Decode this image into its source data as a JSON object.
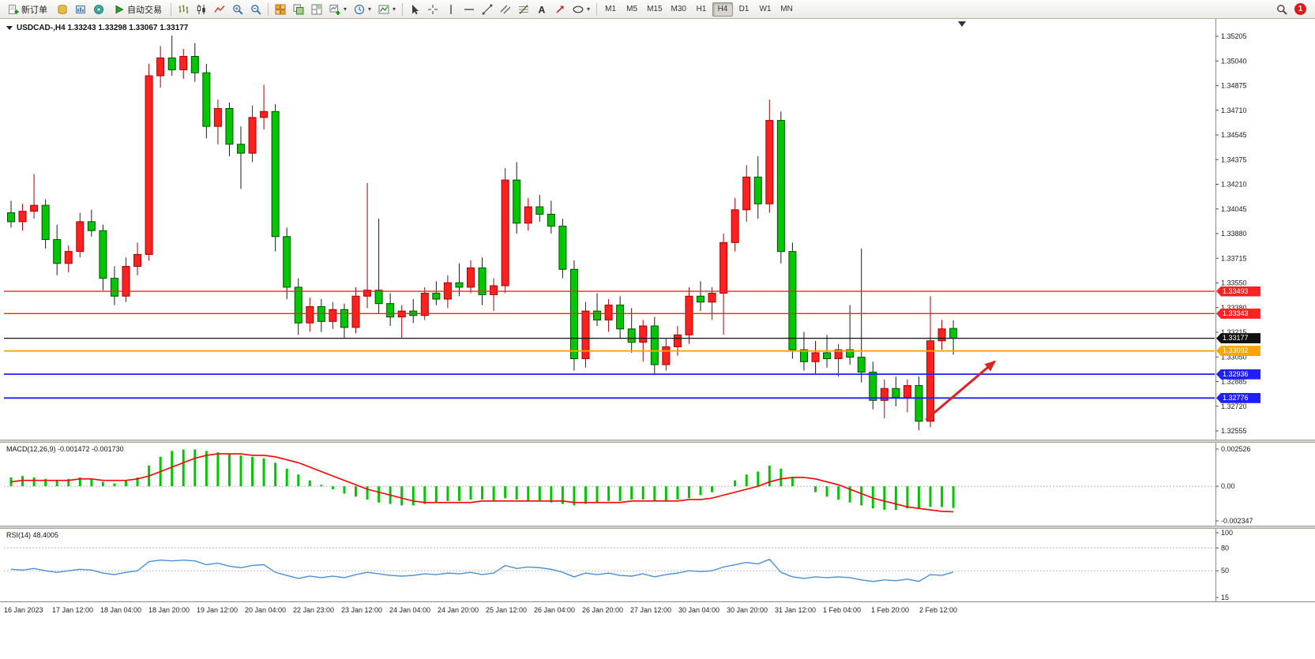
{
  "chart": {
    "title": "USDCAD-,H4  1.33243 1.33298 1.33067 1.33177",
    "symbol": "USDCAD-",
    "timeframe": "H4"
  },
  "toolbar": {
    "new_order_label": "新订单",
    "auto_trading_label": "自动交易",
    "timeframes": [
      "M1",
      "M5",
      "M15",
      "M30",
      "H1",
      "H4",
      "D1",
      "W1",
      "MN"
    ],
    "active_timeframe": "H4",
    "notification_count": "1",
    "groups": [
      {
        "name": "market-group",
        "items": [
          {
            "icon": "market-watch"
          },
          {
            "icon": "data-window"
          },
          {
            "icon": "navigator"
          }
        ]
      },
      {
        "name": "chart-type-group",
        "items": [
          {
            "icon": "bar-chart"
          },
          {
            "icon": "candlestick-chart"
          },
          {
            "icon": "line-chart"
          },
          {
            "icon": "zoom-in"
          },
          {
            "icon": "zoom-out"
          }
        ]
      },
      {
        "name": "window-group",
        "items": [
          {
            "icon": "tile-windows"
          },
          {
            "icon": "cascade-windows"
          },
          {
            "icon": "arrange-windows"
          },
          {
            "icon": "new-chart",
            "caret": true
          },
          {
            "icon": "timeframes-clock",
            "caret": true
          },
          {
            "icon": "indicators",
            "caret": true
          }
        ]
      },
      {
        "name": "drawing-group",
        "items": [
          {
            "icon": "cursor"
          },
          {
            "icon": "crosshair"
          },
          {
            "icon": "vertical-line"
          },
          {
            "icon": "horizontal-line"
          },
          {
            "icon": "trendline"
          },
          {
            "icon": "equidistant-channel"
          },
          {
            "icon": "fibonacci"
          },
          {
            "icon": "text-label"
          },
          {
            "icon": "arrow-marker"
          },
          {
            "icon": "shapes",
            "caret": true
          }
        ]
      }
    ]
  },
  "chart_data": [
    {
      "type": "candlestick",
      "title": "USDCAD-,H4",
      "last_ohlc": {
        "open": 1.33243,
        "high": 1.33298,
        "low": 1.33067,
        "close": 1.33177
      },
      "y_range": [
        1.32555,
        1.35205
      ],
      "y_axis_labels": [
        "1.35205",
        "1.35040",
        "1.34875",
        "1.34710",
        "1.34545",
        "1.34375",
        "1.34210",
        "1.34045",
        "1.33880",
        "1.33715",
        "1.33550",
        "1.33380",
        "1.33215",
        "1.33050",
        "1.32885",
        "1.32720",
        "1.32555"
      ],
      "x_labels": [
        "16 Jan 2023",
        "17 Jan 12:00",
        "18 Jan 04:00",
        "18 Jan 20:00",
        "19 Jan 12:00",
        "20 Jan 04:00",
        "22 Jan 23:00",
        "23 Jan 12:00",
        "24 Jan 04:00",
        "24 Jan 20:00",
        "25 Jan 12:00",
        "26 Jan 04:00",
        "26 Jan 20:00",
        "27 Jan 12:00",
        "30 Jan 04:00",
        "30 Jan 20:00",
        "31 Jan 12:00",
        "1 Feb 04:00",
        "1 Feb 20:00",
        "2 Feb 12:00"
      ],
      "bull_color": "#ff2020",
      "bear_color": "#00c800",
      "candles_ohlc": [
        [
          1.3402,
          1.341,
          1.3392,
          1.3396
        ],
        [
          1.3396,
          1.3408,
          1.339,
          1.3403
        ],
        [
          1.3403,
          1.3428,
          1.3398,
          1.3407
        ],
        [
          1.3407,
          1.3411,
          1.3378,
          1.3384
        ],
        [
          1.3384,
          1.3394,
          1.336,
          1.3368
        ],
        [
          1.3368,
          1.338,
          1.3362,
          1.3376
        ],
        [
          1.3376,
          1.3402,
          1.3372,
          1.3396
        ],
        [
          1.3396,
          1.3404,
          1.3386,
          1.339
        ],
        [
          1.339,
          1.3394,
          1.335,
          1.3358
        ],
        [
          1.3358,
          1.3366,
          1.334,
          1.3346
        ],
        [
          1.3346,
          1.3372,
          1.3342,
          1.3366
        ],
        [
          1.3366,
          1.3382,
          1.336,
          1.3374
        ],
        [
          1.3374,
          1.3502,
          1.337,
          1.3494
        ],
        [
          1.3494,
          1.3514,
          1.3486,
          1.3506
        ],
        [
          1.3506,
          1.3521,
          1.3494,
          1.3498
        ],
        [
          1.3498,
          1.3512,
          1.3492,
          1.3507
        ],
        [
          1.3507,
          1.3516,
          1.349,
          1.3496
        ],
        [
          1.3496,
          1.3502,
          1.3452,
          1.346
        ],
        [
          1.346,
          1.3478,
          1.3448,
          1.3472
        ],
        [
          1.3472,
          1.3476,
          1.344,
          1.3448
        ],
        [
          1.3448,
          1.346,
          1.3418,
          1.3442
        ],
        [
          1.3442,
          1.3474,
          1.3436,
          1.3466
        ],
        [
          1.3466,
          1.3488,
          1.3458,
          1.347
        ],
        [
          1.347,
          1.3475,
          1.3376,
          1.3386
        ],
        [
          1.3386,
          1.3392,
          1.3344,
          1.3352
        ],
        [
          1.3352,
          1.3358,
          1.332,
          1.3328
        ],
        [
          1.3328,
          1.3345,
          1.3322,
          1.3339
        ],
        [
          1.3339,
          1.3344,
          1.3322,
          1.3329
        ],
        [
          1.3329,
          1.3342,
          1.3324,
          1.3337
        ],
        [
          1.3337,
          1.3341,
          1.3318,
          1.3325
        ],
        [
          1.3325,
          1.3352,
          1.3321,
          1.3346
        ],
        [
          1.3346,
          1.3422,
          1.3338,
          1.335
        ],
        [
          1.335,
          1.3398,
          1.3334,
          1.3341
        ],
        [
          1.3341,
          1.3348,
          1.3326,
          1.3332
        ],
        [
          1.3332,
          1.334,
          1.3318,
          1.3336
        ],
        [
          1.3336,
          1.3344,
          1.3328,
          1.3333
        ],
        [
          1.3333,
          1.3352,
          1.333,
          1.3348
        ],
        [
          1.3348,
          1.3356,
          1.334,
          1.3344
        ],
        [
          1.3344,
          1.336,
          1.3338,
          1.3355
        ],
        [
          1.3355,
          1.3368,
          1.3346,
          1.3352
        ],
        [
          1.3352,
          1.337,
          1.3348,
          1.3365
        ],
        [
          1.3365,
          1.3372,
          1.334,
          1.3347
        ],
        [
          1.3347,
          1.3358,
          1.3336,
          1.3353
        ],
        [
          1.3353,
          1.3432,
          1.3348,
          1.3424
        ],
        [
          1.3424,
          1.3436,
          1.3388,
          1.3395
        ],
        [
          1.3395,
          1.3412,
          1.339,
          1.3406
        ],
        [
          1.3406,
          1.3414,
          1.3396,
          1.3401
        ],
        [
          1.3401,
          1.341,
          1.3388,
          1.3393
        ],
        [
          1.3393,
          1.3398,
          1.3358,
          1.3364
        ],
        [
          1.3364,
          1.337,
          1.3296,
          1.3304
        ],
        [
          1.3304,
          1.3342,
          1.3298,
          1.3336
        ],
        [
          1.3336,
          1.3348,
          1.3326,
          1.333
        ],
        [
          1.333,
          1.3344,
          1.3322,
          1.334
        ],
        [
          1.334,
          1.3346,
          1.3318,
          1.3324
        ],
        [
          1.3324,
          1.3338,
          1.3308,
          1.3315
        ],
        [
          1.3315,
          1.333,
          1.3302,
          1.3326
        ],
        [
          1.3326,
          1.3332,
          1.3294,
          1.33
        ],
        [
          1.33,
          1.3318,
          1.3296,
          1.3312
        ],
        [
          1.3312,
          1.3326,
          1.3306,
          1.332
        ],
        [
          1.332,
          1.3352,
          1.3314,
          1.3346
        ],
        [
          1.3346,
          1.3356,
          1.3336,
          1.3342
        ],
        [
          1.3342,
          1.3352,
          1.333,
          1.3348
        ],
        [
          1.3348,
          1.3388,
          1.332,
          1.3382
        ],
        [
          1.3382,
          1.3412,
          1.3376,
          1.3404
        ],
        [
          1.3404,
          1.3434,
          1.3396,
          1.3426
        ],
        [
          1.3426,
          1.344,
          1.3398,
          1.3408
        ],
        [
          1.3408,
          1.3478,
          1.3402,
          1.3464
        ],
        [
          1.3464,
          1.347,
          1.3368,
          1.3376
        ],
        [
          1.3376,
          1.3382,
          1.3304,
          1.331
        ],
        [
          1.331,
          1.3322,
          1.3296,
          1.3302
        ],
        [
          1.3302,
          1.3316,
          1.3294,
          1.3308
        ],
        [
          1.3308,
          1.332,
          1.3298,
          1.3304
        ],
        [
          1.3304,
          1.3314,
          1.3292,
          1.331
        ],
        [
          1.331,
          1.334,
          1.33,
          1.3305
        ],
        [
          1.3305,
          1.3378,
          1.3288,
          1.3295
        ],
        [
          1.3295,
          1.3302,
          1.327,
          1.3276
        ],
        [
          1.3276,
          1.329,
          1.3264,
          1.3284
        ],
        [
          1.3284,
          1.3292,
          1.3272,
          1.3278
        ],
        [
          1.3278,
          1.329,
          1.3268,
          1.3286
        ],
        [
          1.3286,
          1.3292,
          1.3256,
          1.3262
        ],
        [
          1.3262,
          1.3346,
          1.3258,
          1.3316
        ],
        [
          1.3316,
          1.333,
          1.331,
          1.3324
        ],
        [
          1.33243,
          1.33298,
          1.33067,
          1.33177
        ]
      ],
      "levels": [
        {
          "name": "resistance-line-1",
          "price": 1.33493,
          "label": "1.33493",
          "color": "#ff2222",
          "width": 1.4
        },
        {
          "name": "resistance-line-2",
          "price": 1.33343,
          "label": "1.33343",
          "color": "#ff2222",
          "width": 1.4
        },
        {
          "name": "current-price-line",
          "price": 1.33177,
          "label": "1.33177",
          "color": "#111111",
          "width": 1.2
        },
        {
          "name": "orange-support-line",
          "price": 1.33092,
          "label": "1.33092",
          "color": "#ffa500",
          "width": 1.8
        },
        {
          "name": "support-line-1",
          "price": 1.32936,
          "label": "1.32936",
          "color": "#1f1fff",
          "width": 1.8
        },
        {
          "name": "support-line-2",
          "price": 1.32776,
          "label": "1.32776",
          "color": "#1f1fff",
          "width": 1.8
        }
      ],
      "arrow": {
        "name": "trend-arrow",
        "color": "#dd2222",
        "from": {
          "bar": 79.6,
          "price": 1.32629
        },
        "to": {
          "bar": 85.6,
          "price": 1.33021
        }
      }
    },
    {
      "type": "bar",
      "name": "MACD",
      "label": "MACD(12,26,9) -0.001472 -0.001730",
      "current_macd": -0.001472,
      "current_signal": -0.00173,
      "y_range": [
        -0.002347,
        0.002526
      ],
      "y_axis_labels": [
        "0.002526",
        "0.00",
        "-0.002347"
      ],
      "histogram_color": "#00c800",
      "signal_color": "#ff0000",
      "values": [
        0.0006,
        0.0007,
        0.0006,
        0.0005,
        0.0004,
        0.0005,
        0.0006,
        0.0005,
        0.0003,
        0.0002,
        0.0004,
        0.0006,
        0.0014,
        0.002,
        0.0024,
        0.0025,
        0.0025,
        0.0024,
        0.0023,
        0.0022,
        0.0021,
        0.002,
        0.0019,
        0.0016,
        0.0012,
        0.0008,
        0.0004,
        0.0001,
        -0.0002,
        -0.0005,
        -0.0007,
        -0.0009,
        -0.0011,
        -0.0012,
        -0.0013,
        -0.0013,
        -0.0012,
        -0.0011,
        -0.001,
        -0.001,
        -0.0009,
        -0.0009,
        -0.001,
        -0.0008,
        -0.0009,
        -0.001,
        -0.001,
        -0.0011,
        -0.0012,
        -0.0013,
        -0.0012,
        -0.0011,
        -0.001,
        -0.001,
        -0.0009,
        -0.0009,
        -0.001,
        -0.001,
        -0.0009,
        -0.0008,
        -0.0006,
        -0.0004,
        0.0,
        0.0004,
        0.0008,
        0.001,
        0.0014,
        0.0012,
        0.0006,
        0.0,
        -0.0004,
        -0.0007,
        -0.0009,
        -0.0011,
        -0.0013,
        -0.0015,
        -0.0016,
        -0.0016,
        -0.0015,
        -0.0015,
        -0.0014,
        -0.0014,
        -0.001472
      ],
      "signal": [
        0.0003,
        0.0004,
        0.0004,
        0.0004,
        0.0004,
        0.0004,
        0.0005,
        0.0005,
        0.0004,
        0.0004,
        0.0004,
        0.0005,
        0.0007,
        0.001,
        0.0013,
        0.0016,
        0.0019,
        0.0021,
        0.0022,
        0.0022,
        0.0022,
        0.0021,
        0.0021,
        0.002,
        0.0018,
        0.0016,
        0.0013,
        0.001,
        0.0007,
        0.0004,
        0.0001,
        -0.0002,
        -0.0004,
        -0.0006,
        -0.0008,
        -0.001,
        -0.0011,
        -0.0011,
        -0.0011,
        -0.0011,
        -0.0011,
        -0.001,
        -0.001,
        -0.001,
        -0.001,
        -0.001,
        -0.001,
        -0.001,
        -0.001,
        -0.0011,
        -0.0011,
        -0.0011,
        -0.0011,
        -0.0011,
        -0.001,
        -0.001,
        -0.001,
        -0.001,
        -0.001,
        -0.0009,
        -0.0009,
        -0.0008,
        -0.0006,
        -0.0004,
        -0.0002,
        0.0,
        0.0003,
        0.0005,
        0.0006,
        0.0006,
        0.0005,
        0.0003,
        0.0001,
        -0.0002,
        -0.0005,
        -0.0008,
        -0.001,
        -0.0012,
        -0.0014,
        -0.0015,
        -0.0016,
        -0.0017,
        -0.00173
      ]
    },
    {
      "type": "line",
      "name": "RSI",
      "label": "RSI(14) 48.4005",
      "current_value": 48.4005,
      "y_range": [
        15,
        100
      ],
      "y_axis_labels": [
        "100",
        "80",
        "50",
        "15"
      ],
      "level_lines": [
        80,
        50
      ],
      "line_color": "#4a90d9",
      "values": [
        52,
        51,
        53,
        50,
        48,
        50,
        52,
        51,
        47,
        45,
        48,
        50,
        62,
        64,
        63,
        64,
        63,
        58,
        60,
        56,
        54,
        57,
        58,
        48,
        44,
        40,
        43,
        41,
        43,
        41,
        45,
        48,
        46,
        44,
        43,
        44,
        46,
        45,
        47,
        46,
        48,
        45,
        47,
        57,
        53,
        55,
        54,
        52,
        48,
        42,
        47,
        45,
        47,
        44,
        43,
        46,
        42,
        45,
        47,
        50,
        49,
        50,
        55,
        58,
        61,
        59,
        65,
        48,
        42,
        40,
        42,
        41,
        42,
        41,
        38,
        36,
        38,
        37,
        39,
        36,
        45,
        44,
        48.4
      ]
    }
  ]
}
